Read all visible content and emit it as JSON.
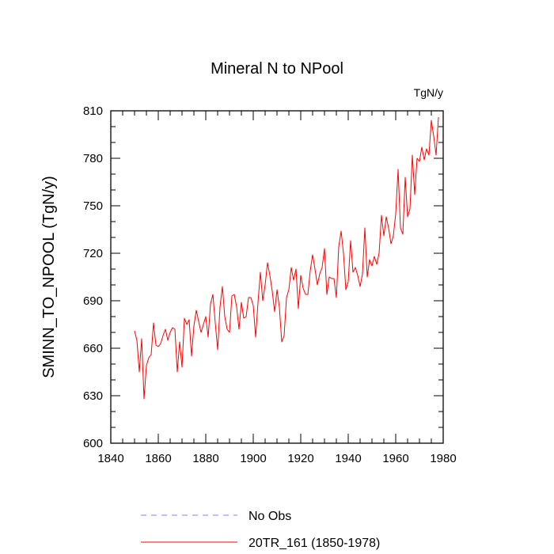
{
  "chart_data": {
    "type": "line",
    "title": "Mineral N to NPool",
    "units": "TgN/y",
    "xlabel": "",
    "ylabel": "SMINN_TO_NPOOL  (TgN/y)",
    "xlim": [
      1840,
      1980
    ],
    "ylim": [
      600,
      810
    ],
    "xticks": [
      1840,
      1860,
      1880,
      1900,
      1920,
      1940,
      1960,
      1980
    ],
    "yticks": [
      600,
      630,
      660,
      690,
      720,
      750,
      780,
      810
    ],
    "series": [
      {
        "name": "No Obs",
        "color": "#8080ff",
        "style": "dashed",
        "x": [],
        "values": []
      },
      {
        "name": "20TR_161 (1850-1978)",
        "color": "#ff0000",
        "style": "solid",
        "x": [
          1850,
          1851,
          1852,
          1853,
          1854,
          1855,
          1856,
          1857,
          1858,
          1859,
          1860,
          1861,
          1862,
          1863,
          1864,
          1865,
          1866,
          1867,
          1868,
          1869,
          1870,
          1871,
          1872,
          1873,
          1874,
          1875,
          1876,
          1877,
          1878,
          1879,
          1880,
          1881,
          1882,
          1883,
          1884,
          1885,
          1886,
          1887,
          1888,
          1889,
          1890,
          1891,
          1892,
          1893,
          1894,
          1895,
          1896,
          1897,
          1898,
          1899,
          1900,
          1901,
          1902,
          1903,
          1904,
          1905,
          1906,
          1907,
          1908,
          1909,
          1910,
          1911,
          1912,
          1913,
          1914,
          1915,
          1916,
          1917,
          1918,
          1919,
          1920,
          1921,
          1922,
          1923,
          1924,
          1925,
          1926,
          1927,
          1928,
          1929,
          1930,
          1931,
          1932,
          1933,
          1934,
          1935,
          1936,
          1937,
          1938,
          1939,
          1940,
          1941,
          1942,
          1943,
          1944,
          1945,
          1946,
          1947,
          1948,
          1949,
          1950,
          1951,
          1952,
          1953,
          1954,
          1955,
          1956,
          1957,
          1958,
          1959,
          1960,
          1961,
          1962,
          1963,
          1964,
          1965,
          1966,
          1967,
          1968,
          1969,
          1970,
          1971,
          1972,
          1973,
          1974,
          1975,
          1976,
          1977,
          1978
        ],
        "values": [
          671,
          665,
          645,
          666,
          628,
          649,
          654,
          656,
          676,
          662,
          661,
          663,
          668,
          672,
          665,
          670,
          673,
          672,
          645,
          664,
          648,
          679,
          675,
          678,
          655,
          674,
          684,
          677,
          670,
          675,
          680,
          667,
          688,
          694,
          676,
          659,
          686,
          699,
          680,
          672,
          670,
          693,
          694,
          686,
          672,
          689,
          679,
          680,
          692,
          692,
          687,
          667,
          689,
          708,
          690,
          700,
          714,
          706,
          696,
          683,
          697,
          686,
          664,
          668,
          692,
          697,
          711,
          703,
          710,
          685,
          706,
          698,
          694,
          694,
          709,
          719,
          710,
          700,
          707,
          711,
          723,
          694,
          705,
          704,
          704,
          692,
          724,
          734,
          720,
          697,
          702,
          728,
          708,
          711,
          706,
          699,
          707,
          736,
          705,
          716,
          712,
          718,
          713,
          720,
          744,
          731,
          743,
          736,
          726,
          731,
          745,
          773,
          736,
          732,
          768,
          743,
          748,
          782,
          757,
          780,
          778,
          787,
          779,
          786,
          782,
          804,
          794,
          782,
          806
        ]
      }
    ],
    "legend": {
      "position": "bottom",
      "entries": [
        "No Obs",
        "20TR_161 (1850-1978)"
      ]
    },
    "grid": false
  }
}
